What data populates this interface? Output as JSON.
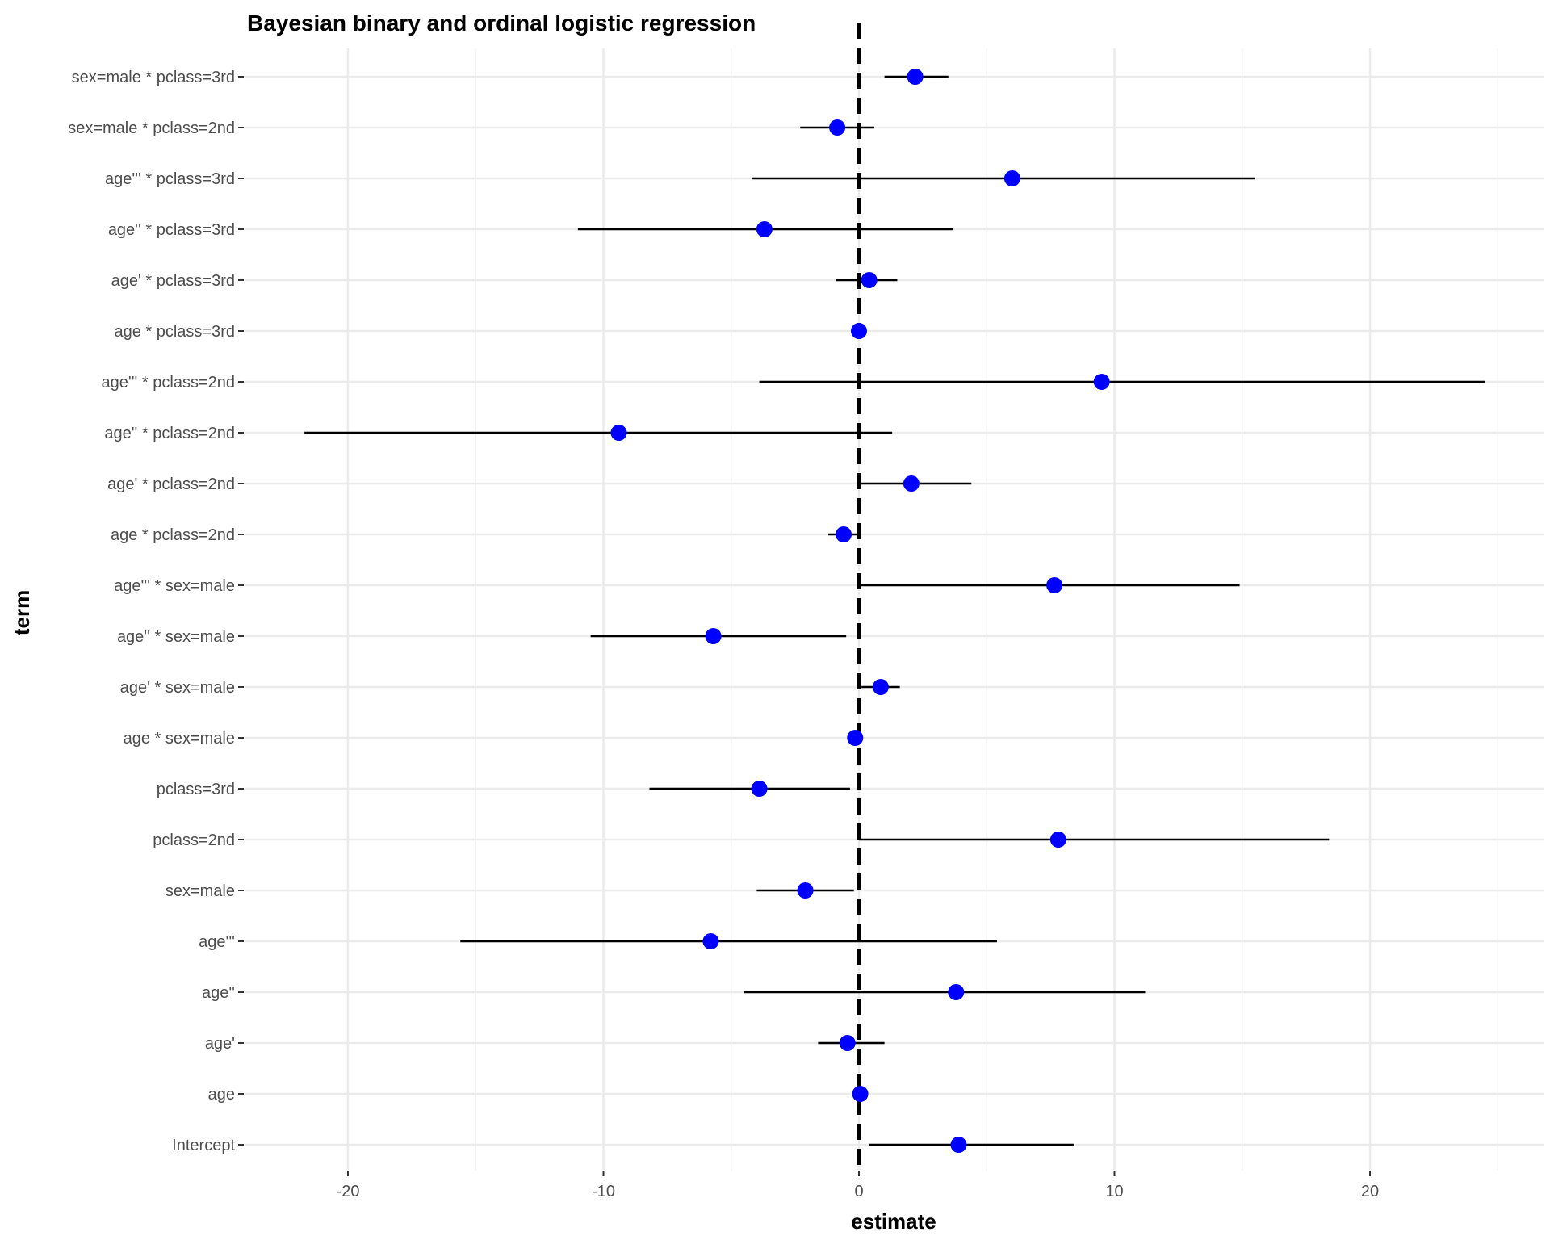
{
  "chart_data": {
    "type": "scatter",
    "title": "Bayesian binary and ordinal logistic regression",
    "xlabel": "estimate",
    "ylabel": "term",
    "xlim": [
      -25,
      27
    ],
    "x_ticks": [
      -20,
      -10,
      0,
      10,
      20
    ],
    "x_tick_labels": [
      "-20",
      "-10",
      "0",
      "10",
      "20"
    ],
    "reference_line": {
      "x": 0,
      "style": "dashed",
      "color": "#000000"
    },
    "grid": true,
    "point_color": "#0000ff",
    "interval_color": "#000000",
    "terms": [
      {
        "term": "Intercept",
        "estimate": 3.9,
        "lower": 0.4,
        "upper": 8.4
      },
      {
        "term": "age",
        "estimate": 0.05,
        "lower": -0.05,
        "upper": 0.15
      },
      {
        "term": "age'",
        "estimate": -0.45,
        "lower": -1.6,
        "upper": 1.0
      },
      {
        "term": "age''",
        "estimate": 3.8,
        "lower": -4.5,
        "upper": 11.2
      },
      {
        "term": "age'''",
        "estimate": -5.8,
        "lower": -15.6,
        "upper": 5.4
      },
      {
        "term": "sex=male",
        "estimate": -2.1,
        "lower": -4.0,
        "upper": -0.2
      },
      {
        "term": "pclass=2nd",
        "estimate": 7.8,
        "lower": 0.0,
        "upper": 18.4
      },
      {
        "term": "pclass=3rd",
        "estimate": -3.9,
        "lower": -8.2,
        "upper": -0.35
      },
      {
        "term": "age * sex=male",
        "estimate": -0.15,
        "lower": -0.3,
        "upper": 0.0
      },
      {
        "term": "age' * sex=male",
        "estimate": 0.85,
        "lower": 0.1,
        "upper": 1.6
      },
      {
        "term": "age'' * sex=male",
        "estimate": -5.7,
        "lower": -10.5,
        "upper": -0.5
      },
      {
        "term": "age''' * sex=male",
        "estimate": 7.65,
        "lower": 0.0,
        "upper": 14.9
      },
      {
        "term": "age * pclass=2nd",
        "estimate": -0.6,
        "lower": -1.2,
        "upper": 0.0
      },
      {
        "term": "age' * pclass=2nd",
        "estimate": 2.05,
        "lower": 0.0,
        "upper": 4.4
      },
      {
        "term": "age'' * pclass=2nd",
        "estimate": -9.4,
        "lower": -21.7,
        "upper": 1.3
      },
      {
        "term": "age''' * pclass=2nd",
        "estimate": 9.5,
        "lower": -3.9,
        "upper": 24.5
      },
      {
        "term": "age * pclass=3rd",
        "estimate": 0.0,
        "lower": -0.1,
        "upper": 0.1
      },
      {
        "term": "age' * pclass=3rd",
        "estimate": 0.4,
        "lower": -0.9,
        "upper": 1.5
      },
      {
        "term": "age'' * pclass=3rd",
        "estimate": -3.7,
        "lower": -11.0,
        "upper": 3.7
      },
      {
        "term": "age''' * pclass=3rd",
        "estimate": 6.0,
        "lower": -4.2,
        "upper": 15.5
      },
      {
        "term": "sex=male * pclass=2nd",
        "estimate": -0.85,
        "lower": -2.3,
        "upper": 0.6
      },
      {
        "term": "sex=male * pclass=3rd",
        "estimate": 2.2,
        "lower": 1.0,
        "upper": 3.5
      }
    ]
  }
}
